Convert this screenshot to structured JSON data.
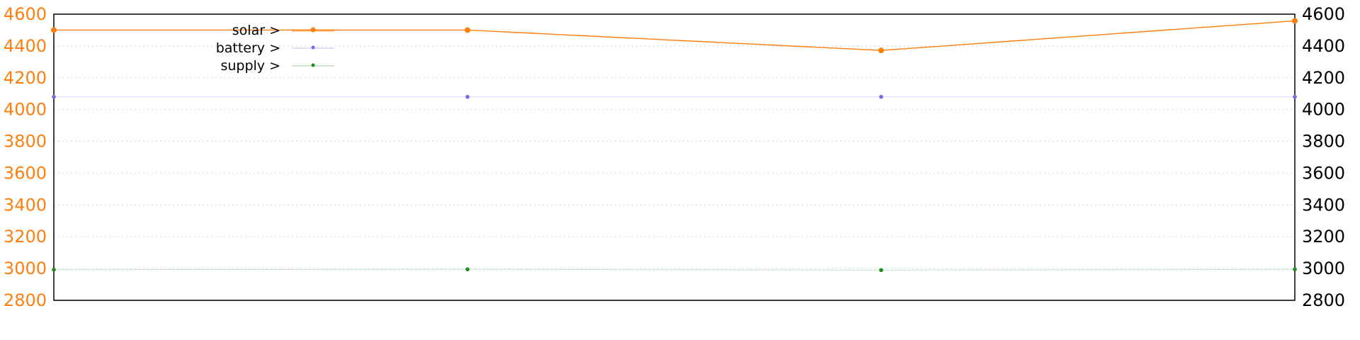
{
  "chart_data": {
    "type": "line",
    "x": [
      0,
      1,
      2,
      3
    ],
    "ylim": [
      2800,
      4600
    ],
    "y_ticks": [
      "2800",
      "3000",
      "3200",
      "3400",
      "3600",
      "3800",
      "4000",
      "4200",
      "4400",
      "4600"
    ],
    "grid": true,
    "legend_position": "top-left",
    "series": [
      {
        "name": "solar >",
        "color": "#ff7f0e",
        "values": [
          4500,
          4500,
          4372,
          4558
        ]
      },
      {
        "name": "battery >",
        "color": "#7b68ee",
        "values": [
          4080,
          4080,
          4080,
          4080
        ]
      },
      {
        "name": "supply >",
        "color": "#228b22",
        "values": [
          2993,
          2995,
          2990,
          2995
        ]
      }
    ],
    "colors": {
      "left_axis": "#ff7f0e",
      "right_axis": "#000000",
      "grid": "#d8d8d8"
    }
  }
}
